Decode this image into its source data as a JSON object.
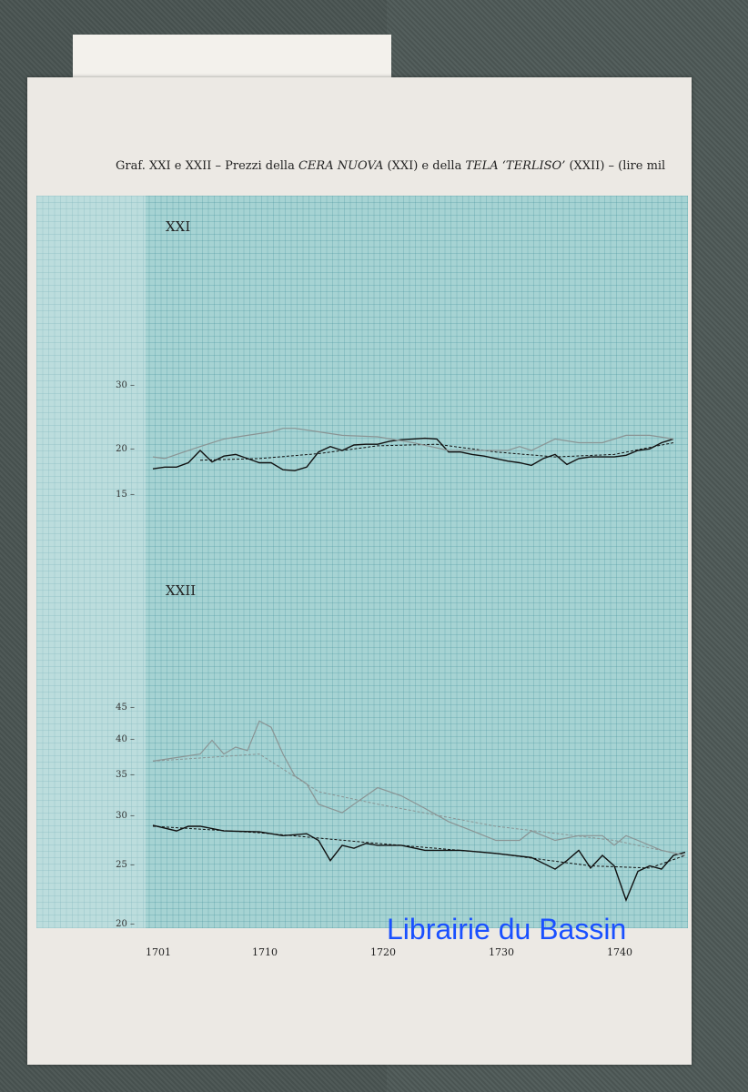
{
  "title": {
    "prefix": "Graf. XXI e XXII – Prezzi della ",
    "item1": "CERA NUOVA",
    "mid": " (XXI) e della ",
    "item2": "TELA ‘TERLISO’",
    "suffix": " (XXII) – (lire mil"
  },
  "watermark": "Librairie du Bassin",
  "colors": {
    "panel": "#a6d3d3",
    "actual": "#111111",
    "trend": "#111111",
    "faint": "#8a9494"
  },
  "chart_data": [
    {
      "type": "line",
      "panel_label": "XXI",
      "yscale": "log",
      "ylim": [
        14,
        40
      ],
      "yticks": [
        15,
        20,
        30
      ],
      "xlim": [
        1700,
        1746
      ],
      "series": [
        {
          "style": "solid-black",
          "x": [
            1701,
            1702,
            1703,
            1704,
            1705,
            1706,
            1707,
            1708,
            1709,
            1710,
            1711,
            1712,
            1713,
            1714,
            1715,
            1716,
            1717,
            1718,
            1719,
            1720,
            1721,
            1722,
            1723,
            1724,
            1725,
            1726,
            1727,
            1728,
            1729,
            1730,
            1731,
            1732,
            1733,
            1734,
            1735,
            1736,
            1737,
            1738,
            1739,
            1740,
            1741,
            1742,
            1743,
            1744,
            1745
          ],
          "y": [
            17.8,
            18,
            18,
            18.5,
            20,
            18.6,
            19.3,
            19.5,
            19,
            18.5,
            18.5,
            17.7,
            17.6,
            18,
            19.8,
            20.5,
            20,
            20.7,
            20.8,
            20.8,
            21.2,
            21.4,
            21.5,
            21.6,
            21.5,
            19.8,
            19.8,
            19.5,
            19.3,
            19,
            18.7,
            18.5,
            18.2,
            19,
            19.5,
            18.3,
            19,
            19.2,
            19.2,
            19.2,
            19.4,
            20,
            20.2,
            21,
            21.5
          ]
        },
        {
          "style": "dashed-trend",
          "x": [
            1705,
            1710,
            1715,
            1720,
            1725,
            1730,
            1735,
            1740,
            1745
          ],
          "y": [
            18.8,
            19,
            19.6,
            20.6,
            20.8,
            19.8,
            19.2,
            19.5,
            21
          ]
        },
        {
          "style": "faint-gray",
          "x": [
            1701,
            1702,
            1703,
            1705,
            1707,
            1709,
            1711,
            1712,
            1713,
            1715,
            1717,
            1720,
            1723,
            1726,
            1729,
            1731,
            1732,
            1733,
            1735,
            1737,
            1739,
            1741,
            1743,
            1745
          ],
          "y": [
            19.2,
            19,
            19.5,
            20.5,
            21.5,
            22,
            22.5,
            23,
            23,
            22.5,
            22,
            21.8,
            21,
            20,
            20,
            20,
            20.5,
            20,
            21.5,
            21,
            21,
            22,
            22,
            21.5
          ]
        }
      ]
    },
    {
      "type": "line",
      "panel_label": "XXII",
      "yscale": "log",
      "ylim": [
        20,
        60
      ],
      "yticks": [
        20,
        25,
        30,
        35,
        40,
        45
      ],
      "xlim": [
        1700,
        1746
      ],
      "xticks": [
        "1701",
        "1710",
        "1720",
        "1730",
        "1740"
      ],
      "series": [
        {
          "style": "solid-black",
          "x": [
            1701,
            1703,
            1704,
            1705,
            1707,
            1710,
            1712,
            1714,
            1715,
            1716,
            1717,
            1718,
            1719,
            1720,
            1722,
            1724,
            1727,
            1730,
            1733,
            1735,
            1736,
            1737,
            1738,
            1739,
            1740,
            1741,
            1742,
            1743,
            1744,
            1745,
            1746
          ],
          "y": [
            29.1,
            28.5,
            29,
            29,
            28.5,
            28.4,
            28,
            28.2,
            27.5,
            25.5,
            27,
            26.7,
            27.2,
            27,
            27,
            26.5,
            26.5,
            26.2,
            25.8,
            24.7,
            25.5,
            26.5,
            24.8,
            26,
            25,
            22,
            24.5,
            25,
            24.7,
            26,
            26.3
          ]
        },
        {
          "style": "dashed-trend",
          "x": [
            1701,
            1710,
            1720,
            1730,
            1738,
            1743,
            1746
          ],
          "y": [
            29,
            28.3,
            27.2,
            26.2,
            25,
            24.8,
            26
          ]
        },
        {
          "style": "faint-gray",
          "x": [
            1701,
            1703,
            1705,
            1706,
            1707,
            1708,
            1709,
            1710,
            1711,
            1712,
            1713,
            1714,
            1715,
            1716,
            1717,
            1718,
            1720,
            1722,
            1724,
            1726,
            1728,
            1730,
            1732,
            1733,
            1735,
            1737,
            1739,
            1740,
            1741,
            1742,
            1744,
            1746
          ],
          "y": [
            37,
            37.5,
            38,
            40,
            38,
            39,
            38.5,
            43,
            42,
            38,
            35,
            34,
            31.5,
            31,
            30.5,
            31.5,
            33.5,
            32.5,
            31,
            29.5,
            28.5,
            27.5,
            27.5,
            28.5,
            27.5,
            28,
            28,
            27,
            28,
            27.5,
            26.5,
            26
          ]
        },
        {
          "style": "faint-gray-dashed",
          "x": [
            1701,
            1710,
            1715,
            1720,
            1730,
            1740,
            1746
          ],
          "y": [
            37,
            38,
            33,
            31.5,
            29,
            27.5,
            26
          ]
        }
      ]
    }
  ]
}
